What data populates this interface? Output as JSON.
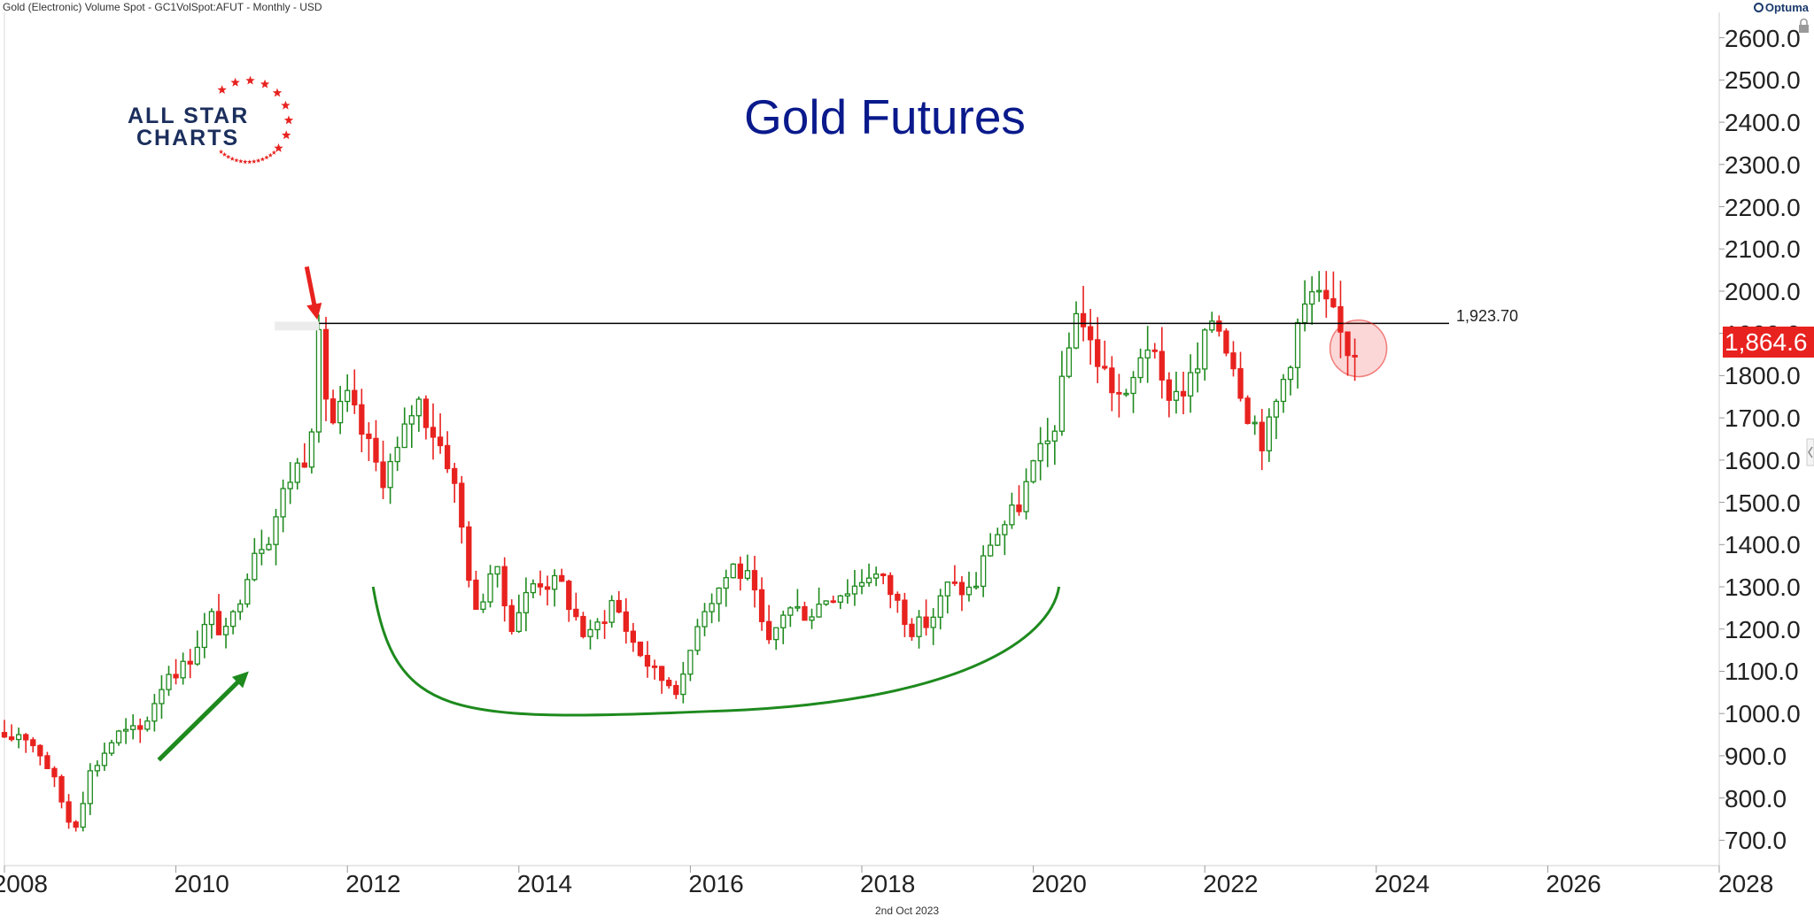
{
  "header": {
    "instrument": "Gold (Electronic) Volume Spot - GC1VolSpot:AFUT - Monthly - USD",
    "brand": "Optuma"
  },
  "logo": {
    "line1": "ALL STAR",
    "line2": "CHARTS"
  },
  "colors": {
    "up": "#1e8a1e",
    "down": "#e8221f",
    "title": "#0a1a8c",
    "level": "#000000"
  },
  "chart_data": {
    "type": "candlestick",
    "title": "Gold Futures",
    "interval": "Monthly",
    "ylim": [
      640,
      2660
    ],
    "xlim": [
      2008.0,
      2028.0
    ],
    "y_ticks": [
      "700.0",
      "800.0",
      "900.0",
      "1000.0",
      "1100.0",
      "1200.0",
      "1300.0",
      "1400.0",
      "1500.0",
      "1600.0",
      "1700.0",
      "1800.0",
      "1900.0",
      "2000.0",
      "2100.0",
      "2200.0",
      "2300.0",
      "2400.0",
      "2500.0",
      "2600.0"
    ],
    "x_ticks": [
      "2008",
      "2010",
      "2012",
      "2014",
      "2016",
      "2018",
      "2020",
      "2022",
      "2024",
      "2026",
      "2028"
    ],
    "last_price": "1,864.6",
    "horizontal_level": {
      "value": 1923.7,
      "label": "1,923.70",
      "from_x": 2011.67
    },
    "date_label": "2nd Oct 2023",
    "close_anchors": [
      [
        2008.0,
        930
      ],
      [
        2008.2,
        960
      ],
      [
        2008.45,
        900
      ],
      [
        2008.6,
        830
      ],
      [
        2008.8,
        720
      ],
      [
        2009.0,
        860
      ],
      [
        2009.3,
        950
      ],
      [
        2009.6,
        960
      ],
      [
        2009.9,
        1100
      ],
      [
        2010.1,
        1110
      ],
      [
        2010.4,
        1230
      ],
      [
        2010.6,
        1180
      ],
      [
        2010.9,
        1390
      ],
      [
        2011.1,
        1430
      ],
      [
        2011.3,
        1550
      ],
      [
        2011.55,
        1630
      ],
      [
        2011.67,
        1880
      ],
      [
        2011.8,
        1680
      ],
      [
        2012.0,
        1740
      ],
      [
        2012.2,
        1650
      ],
      [
        2012.4,
        1560
      ],
      [
        2012.6,
        1620
      ],
      [
        2012.8,
        1750
      ],
      [
        2013.0,
        1670
      ],
      [
        2013.2,
        1590
      ],
      [
        2013.35,
        1420
      ],
      [
        2013.5,
        1230
      ],
      [
        2013.7,
        1360
      ],
      [
        2013.9,
        1210
      ],
      [
        2014.2,
        1320
      ],
      [
        2014.5,
        1300
      ],
      [
        2014.8,
        1170
      ],
      [
        2015.1,
        1270
      ],
      [
        2015.3,
        1180
      ],
      [
        2015.6,
        1090
      ],
      [
        2015.9,
        1060
      ],
      [
        2016.1,
        1240
      ],
      [
        2016.3,
        1290
      ],
      [
        2016.5,
        1350
      ],
      [
        2016.7,
        1310
      ],
      [
        2016.9,
        1150
      ],
      [
        2017.1,
        1250
      ],
      [
        2017.4,
        1240
      ],
      [
        2017.6,
        1280
      ],
      [
        2017.9,
        1300
      ],
      [
        2018.1,
        1340
      ],
      [
        2018.3,
        1300
      ],
      [
        2018.6,
        1200
      ],
      [
        2018.8,
        1220
      ],
      [
        2019.0,
        1300
      ],
      [
        2019.3,
        1290
      ],
      [
        2019.5,
        1410
      ],
      [
        2019.8,
        1480
      ],
      [
        2020.0,
        1580
      ],
      [
        2020.2,
        1650
      ],
      [
        2020.35,
        1780
      ],
      [
        2020.5,
        1970
      ],
      [
        2020.65,
        1880
      ],
      [
        2020.9,
        1780
      ],
      [
        2021.1,
        1730
      ],
      [
        2021.3,
        1900
      ],
      [
        2021.5,
        1770
      ],
      [
        2021.7,
        1760
      ],
      [
        2021.9,
        1800
      ],
      [
        2022.1,
        1950
      ],
      [
        2022.3,
        1860
      ],
      [
        2022.5,
        1720
      ],
      [
        2022.7,
        1640
      ],
      [
        2022.9,
        1780
      ],
      [
        2023.1,
        1930
      ],
      [
        2023.25,
        1990
      ],
      [
        2023.45,
        1950
      ],
      [
        2023.65,
        1870
      ],
      [
        2023.75,
        1864.6
      ]
    ],
    "annotations": [
      {
        "type": "arrow",
        "color": "red",
        "points_to": [
          2011.67,
          1923.7
        ]
      },
      {
        "type": "arrow",
        "color": "green",
        "from": [
          2009.8,
          890
        ],
        "to": [
          2010.85,
          1100
        ]
      },
      {
        "type": "bowl-arc",
        "color": "green",
        "from": [
          2012.3,
          1300
        ],
        "bottom": [
          2016.2,
          1005
        ],
        "to": [
          2020.3,
          1300
        ]
      },
      {
        "type": "circle",
        "color": "red",
        "center": [
          2023.75,
          1864.6
        ]
      }
    ]
  }
}
